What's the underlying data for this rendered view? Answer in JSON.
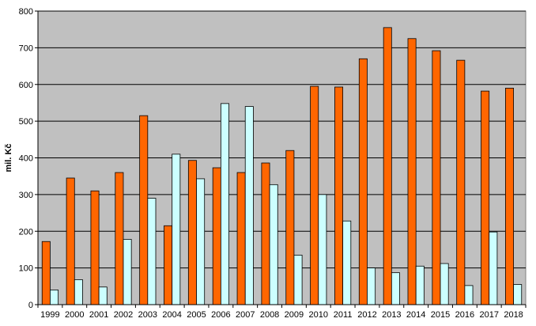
{
  "chart_data": {
    "type": "bar",
    "title": "",
    "xlabel": "",
    "ylabel": "mil. Kč",
    "ylim": [
      0,
      800
    ],
    "yticks": [
      0,
      100,
      200,
      300,
      400,
      500,
      600,
      700,
      800
    ],
    "grid": true,
    "legend": "none",
    "categories": [
      "1999",
      "2000",
      "2001",
      "2002",
      "2003",
      "2004",
      "2005",
      "2006",
      "2007",
      "2008",
      "2009",
      "2010",
      "2011",
      "2012",
      "2013",
      "2014",
      "2015",
      "2016",
      "2017",
      "2018"
    ],
    "series": [
      {
        "color": "#FF6600",
        "values": [
          172,
          345,
          310,
          360,
          515,
          215,
          393,
          373,
          360,
          386,
          420,
          595,
          593,
          670,
          755,
          725,
          692,
          666,
          582,
          590
        ]
      },
      {
        "color": "#CCFFFF",
        "values": [
          40,
          68,
          48,
          178,
          290,
          410,
          343,
          548,
          540,
          327,
          135,
          300,
          228,
          100,
          87,
          105,
          112,
          52,
          198,
          55
        ]
      }
    ],
    "plot_background": "#C0C0C0",
    "gridline_color": "#000000"
  }
}
